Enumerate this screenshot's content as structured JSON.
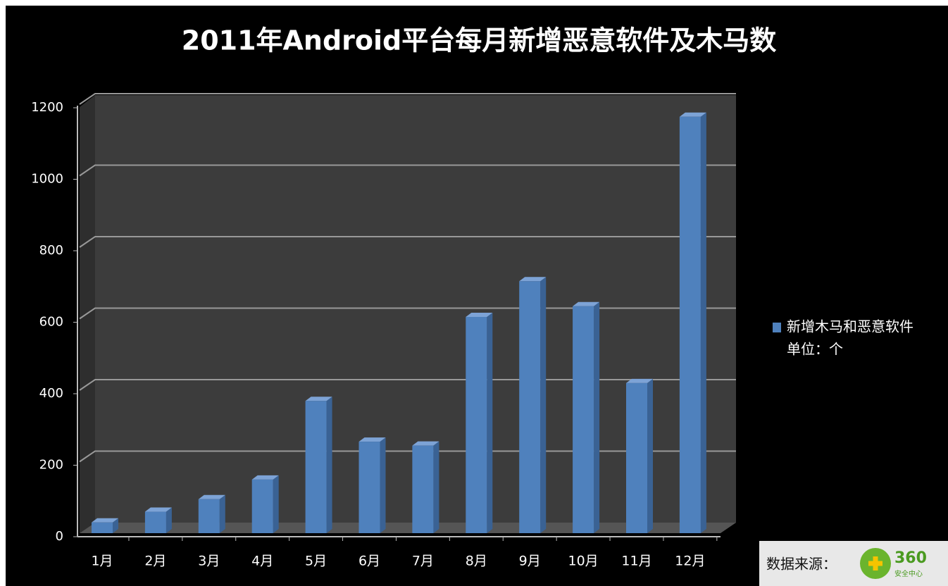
{
  "chart_data": {
    "type": "bar3d",
    "title": "2011年Android平台每月新增恶意软件及木马数",
    "categories": [
      "1月",
      "2月",
      "3月",
      "4月",
      "5月",
      "6月",
      "7月",
      "8月",
      "9月",
      "10月",
      "11月",
      "12月"
    ],
    "series": [
      {
        "name": "新增木马和恶意软件",
        "color": "#4f81bd",
        "values": [
          30,
          60,
          95,
          150,
          370,
          256,
          245,
          605,
          705,
          635,
          420,
          1165
        ]
      }
    ],
    "legend_note": "单位：个",
    "source_label": "数据来源：",
    "source_logo": "360",
    "source_logo_sub": "安全中心",
    "ylim": [
      0,
      1200
    ],
    "yticks": [
      0,
      200,
      400,
      600,
      800,
      1000,
      1200
    ],
    "grid": true,
    "legend": "right"
  }
}
